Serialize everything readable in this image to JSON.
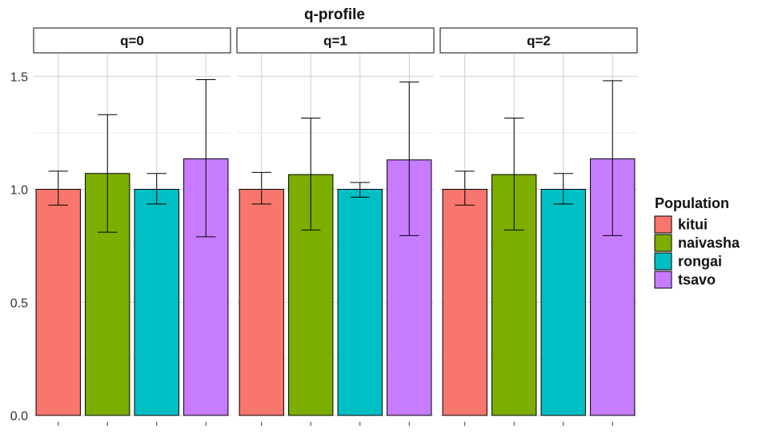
{
  "chart_data": {
    "type": "bar",
    "title": "q-profile",
    "xlabel": "",
    "ylabel": "",
    "ylim": [
      0,
      1.6
    ],
    "yticks": [
      0.0,
      0.5,
      1.0,
      1.5
    ],
    "ytick_labels": [
      "0.0",
      "0.5",
      "1.0",
      "1.5"
    ],
    "grid": true,
    "legend": {
      "title": "Population",
      "position": "right"
    },
    "categories": [
      "kitui",
      "naivasha",
      "rongai",
      "tsavo"
    ],
    "colors": {
      "kitui": "#F8766D",
      "naivasha": "#7CAE00",
      "rongai": "#00BFC4",
      "tsavo": "#C77CFF"
    },
    "panels": [
      {
        "label": "q=0",
        "series": [
          {
            "name": "kitui",
            "value": 1.0,
            "err_low": 0.93,
            "err_high": 1.08
          },
          {
            "name": "naivasha",
            "value": 1.07,
            "err_low": 0.81,
            "err_high": 1.33
          },
          {
            "name": "rongai",
            "value": 1.0,
            "err_low": 0.935,
            "err_high": 1.07
          },
          {
            "name": "tsavo",
            "value": 1.135,
            "err_low": 0.79,
            "err_high": 1.485
          }
        ]
      },
      {
        "label": "q=1",
        "series": [
          {
            "name": "kitui",
            "value": 1.0,
            "err_low": 0.935,
            "err_high": 1.075
          },
          {
            "name": "naivasha",
            "value": 1.065,
            "err_low": 0.82,
            "err_high": 1.315
          },
          {
            "name": "rongai",
            "value": 1.0,
            "err_low": 0.965,
            "err_high": 1.03
          },
          {
            "name": "tsavo",
            "value": 1.13,
            "err_low": 0.795,
            "err_high": 1.475
          }
        ]
      },
      {
        "label": "q=2",
        "series": [
          {
            "name": "kitui",
            "value": 1.0,
            "err_low": 0.93,
            "err_high": 1.08
          },
          {
            "name": "naivasha",
            "value": 1.065,
            "err_low": 0.82,
            "err_high": 1.315
          },
          {
            "name": "rongai",
            "value": 1.0,
            "err_low": 0.935,
            "err_high": 1.07
          },
          {
            "name": "tsavo",
            "value": 1.135,
            "err_low": 0.795,
            "err_high": 1.48
          }
        ]
      }
    ]
  }
}
